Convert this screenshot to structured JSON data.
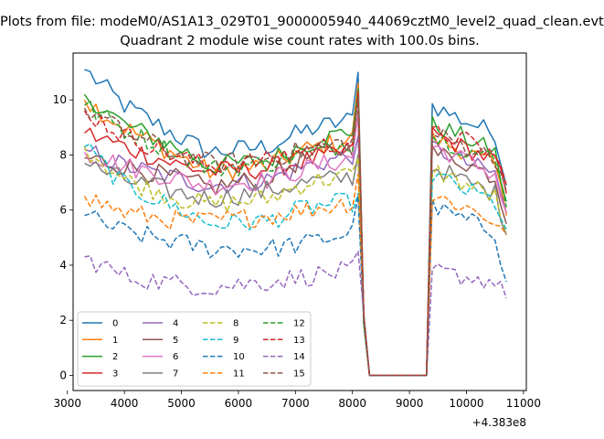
{
  "suptitle": "Plots from file: modeM0/AS1A13_029T01_9000005940_44069cztM0_level2_quad_clean.evt",
  "chart_data": {
    "type": "line",
    "title": "Quadrant 2 module wise count rates with 100.0s bins.",
    "xlabel": "",
    "ylabel": "",
    "x_offset_label": "+4.383e8",
    "xlim": [
      3100,
      11050
    ],
    "ylim": [
      -0.55,
      11.7
    ],
    "xticks": [
      3000,
      4000,
      5000,
      6000,
      7000,
      8000,
      9000,
      10000,
      11000
    ],
    "yticks": [
      0,
      2,
      4,
      6,
      8,
      10
    ],
    "legend_location": "lower-left",
    "legend_columns": 4,
    "x_start": 3300,
    "x_step": 100,
    "segments": {
      "seg1": {
        "from": 3300,
        "to": 8100,
        "points": 49
      },
      "drop": [
        8100,
        8200,
        8300
      ],
      "gap": [
        8300,
        9300
      ],
      "seg2": {
        "from": 9300,
        "to": 10700
      }
    },
    "series": [
      {
        "name": "0",
        "color": "#1f77b4",
        "dash": "solid",
        "levels": [
          11.1,
          9.8,
          8.6,
          8.1,
          8.3,
          8.9,
          9.3,
          11.0,
          0.0,
          0.0,
          9.8,
          9.3,
          8.8,
          6.9
        ]
      },
      {
        "name": "1",
        "color": "#ff7f0e",
        "dash": "solid",
        "levels": [
          10.0,
          9.0,
          7.9,
          7.4,
          7.6,
          8.2,
          8.6,
          10.6,
          0.0,
          0.0,
          8.6,
          8.2,
          7.6,
          5.8
        ]
      },
      {
        "name": "2",
        "color": "#2ca02c",
        "dash": "solid",
        "levels": [
          10.2,
          9.1,
          8.2,
          7.6,
          7.8,
          8.4,
          8.9,
          10.4,
          0.0,
          0.0,
          9.1,
          8.7,
          8.1,
          6.3
        ]
      },
      {
        "name": "3",
        "color": "#d62728",
        "dash": "solid",
        "levels": [
          8.8,
          8.3,
          7.6,
          7.4,
          7.5,
          7.8,
          8.1,
          9.4,
          0.0,
          0.0,
          8.8,
          8.3,
          7.8,
          6.6
        ]
      },
      {
        "name": "4",
        "color": "#9467bd",
        "dash": "solid",
        "levels": [
          8.2,
          7.6,
          7.1,
          6.9,
          7.1,
          7.6,
          8.0,
          8.7,
          0.0,
          0.0,
          8.3,
          7.8,
          7.3,
          5.9
        ]
      },
      {
        "name": "5",
        "color": "#8c564b",
        "dash": "solid",
        "levels": [
          7.9,
          7.6,
          7.1,
          6.8,
          7.2,
          7.9,
          8.3,
          9.6,
          0.0,
          0.0,
          8.1,
          7.8,
          7.2,
          5.5
        ]
      },
      {
        "name": "6",
        "color": "#e377c2",
        "dash": "solid",
        "levels": [
          8.1,
          7.6,
          7.1,
          6.9,
          7.1,
          7.5,
          7.9,
          9.5,
          0.0,
          0.0,
          8.3,
          7.9,
          7.3,
          5.9
        ]
      },
      {
        "name": "7",
        "color": "#7f7f7f",
        "dash": "solid",
        "levels": [
          7.7,
          7.1,
          6.6,
          6.4,
          6.7,
          7.0,
          7.2,
          8.0,
          0.0,
          0.0,
          7.6,
          7.1,
          6.6,
          5.1
        ]
      },
      {
        "name": "8",
        "color": "#bcbd22",
        "dash": "dashed",
        "levels": [
          8.3,
          7.1,
          6.4,
          6.2,
          6.4,
          7.0,
          7.3,
          7.9,
          0.0,
          0.0,
          7.5,
          7.0,
          6.5,
          5.2
        ]
      },
      {
        "name": "9",
        "color": "#17becf",
        "dash": "dashed",
        "levels": [
          8.3,
          6.9,
          6.0,
          5.5,
          5.6,
          6.1,
          6.3,
          6.6,
          0.0,
          0.0,
          7.3,
          6.8,
          6.3,
          5.3
        ]
      },
      {
        "name": "10",
        "color": "#1f77b4",
        "dash": "dashed",
        "levels": [
          5.8,
          5.2,
          4.8,
          4.6,
          4.6,
          4.8,
          5.2,
          6.5,
          0.0,
          0.0,
          6.1,
          5.7,
          5.2,
          3.4
        ]
      },
      {
        "name": "11",
        "color": "#ff7f0e",
        "dash": "dashed",
        "levels": [
          6.5,
          5.9,
          5.6,
          5.6,
          5.8,
          6.0,
          6.3,
          7.3,
          0.0,
          0.0,
          6.5,
          6.2,
          5.6,
          5.1
        ]
      },
      {
        "name": "12",
        "color": "#2ca02c",
        "dash": "dashed",
        "levels": [
          9.8,
          8.9,
          8.0,
          7.5,
          7.7,
          8.1,
          8.5,
          10.2,
          0.0,
          0.0,
          8.7,
          8.3,
          7.8,
          6.1
        ]
      },
      {
        "name": "13",
        "color": "#d62728",
        "dash": "dashed",
        "levels": [
          9.6,
          8.7,
          7.9,
          7.6,
          7.8,
          8.2,
          8.5,
          10.3,
          0.0,
          0.0,
          8.8,
          8.6,
          8.0,
          6.9
        ]
      },
      {
        "name": "14",
        "color": "#9467bd",
        "dash": "dashed",
        "levels": [
          4.3,
          3.6,
          3.3,
          3.2,
          3.4,
          3.6,
          3.8,
          4.5,
          0.0,
          0.0,
          3.8,
          3.6,
          3.4,
          2.8
        ]
      },
      {
        "name": "15",
        "color": "#8c564b",
        "dash": "dashed",
        "levels": [
          9.7,
          8.8,
          8.0,
          7.7,
          7.9,
          8.2,
          8.5,
          10.0,
          0.0,
          0.0,
          8.8,
          8.4,
          7.9,
          6.7
        ]
      }
    ]
  }
}
